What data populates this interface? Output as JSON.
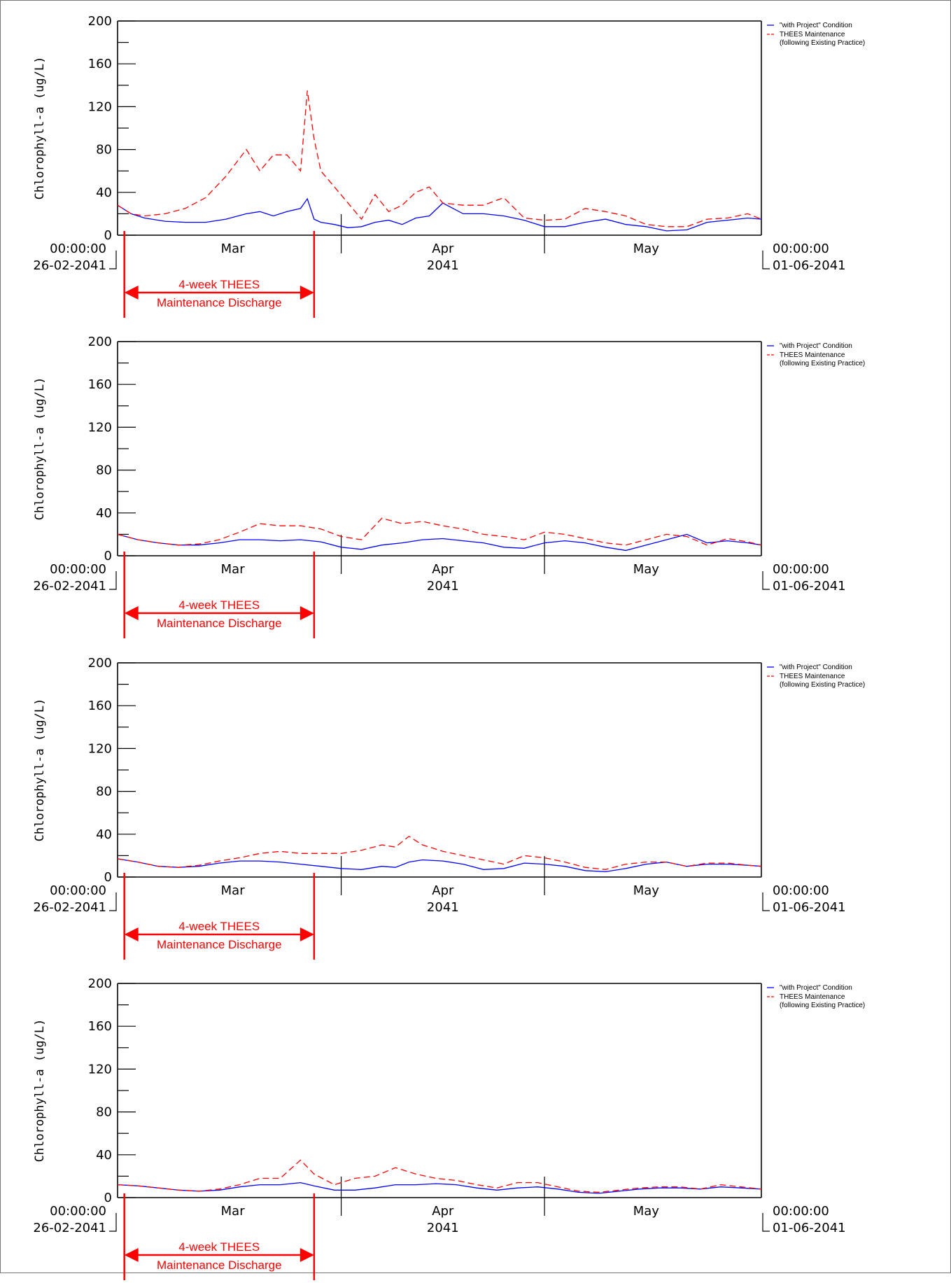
{
  "colors": {
    "with_project": "#0000ff",
    "thees": "#ff0000",
    "axis": "#000000",
    "annotation": "#ff0000"
  },
  "axis_text": {
    "start_time": "00:00:00",
    "start_date": "26-02-2041",
    "end_time": "00:00:00",
    "end_date": "01-06-2041",
    "year": "2041"
  },
  "annotation": {
    "line1": "4-week THEES",
    "line2": "Maintenance Discharge",
    "start": "2041-02-27",
    "end": "2041-03-27"
  },
  "chart_data": [
    {
      "type": "line",
      "ylabel": "Chlorophyll-a (ug/L)",
      "ylim": [
        0,
        200
      ],
      "yticks": [
        0,
        40,
        80,
        120,
        160,
        200
      ],
      "xlim": [
        "2041-02-26",
        "2041-06-01"
      ],
      "xtick_labels": [
        {
          "date": "2041-03-15",
          "label": "Mar"
        },
        {
          "date": "2041-04-15",
          "label": "Apr"
        },
        {
          "date": "2041-05-15",
          "label": "May"
        }
      ],
      "month_boundaries": [
        "2041-03-31",
        "2041-04-30"
      ],
      "legend_position": "top-right",
      "x": [
        "2041-02-26",
        "2041-02-28",
        "2041-03-02",
        "2041-03-05",
        "2041-03-08",
        "2041-03-11",
        "2041-03-14",
        "2041-03-17",
        "2041-03-19",
        "2041-03-21",
        "2041-03-23",
        "2041-03-25",
        "2041-03-26",
        "2041-03-27",
        "2041-03-28",
        "2041-03-30",
        "2041-04-01",
        "2041-04-03",
        "2041-04-05",
        "2041-04-07",
        "2041-04-09",
        "2041-04-11",
        "2041-04-13",
        "2041-04-15",
        "2041-04-18",
        "2041-04-21",
        "2041-04-24",
        "2041-04-27",
        "2041-04-30",
        "2041-05-03",
        "2041-05-06",
        "2041-05-09",
        "2041-05-12",
        "2041-05-15",
        "2041-05-18",
        "2041-05-21",
        "2041-05-24",
        "2041-05-27",
        "2041-05-30",
        "2041-06-01"
      ],
      "series": [
        {
          "name": "\"with Project\" Condition",
          "style": "solid",
          "values": [
            28,
            20,
            16,
            13,
            12,
            12,
            15,
            20,
            22,
            18,
            22,
            25,
            34,
            15,
            12,
            10,
            7,
            8,
            12,
            14,
            10,
            16,
            18,
            30,
            20,
            20,
            18,
            14,
            8,
            8,
            12,
            15,
            10,
            8,
            4,
            5,
            12,
            14,
            16,
            15
          ]
        },
        {
          "name": "THEES Maintenance\n(following Existing Practice)",
          "style": "dashed",
          "values": [
            28,
            20,
            18,
            20,
            25,
            35,
            55,
            80,
            60,
            75,
            75,
            60,
            135,
            90,
            60,
            45,
            30,
            15,
            38,
            22,
            28,
            40,
            45,
            30,
            28,
            28,
            35,
            16,
            14,
            15,
            25,
            22,
            18,
            10,
            8,
            8,
            15,
            16,
            20,
            15
          ]
        }
      ]
    },
    {
      "type": "line",
      "ylabel": "Chlorophyll-a (ug/L)",
      "ylim": [
        0,
        200
      ],
      "yticks": [
        0,
        40,
        80,
        120,
        160,
        200
      ],
      "xlim": [
        "2041-02-26",
        "2041-06-01"
      ],
      "xtick_labels": [
        {
          "date": "2041-03-15",
          "label": "Mar"
        },
        {
          "date": "2041-04-15",
          "label": "Apr"
        },
        {
          "date": "2041-05-15",
          "label": "May"
        }
      ],
      "month_boundaries": [
        "2041-03-31",
        "2041-04-30"
      ],
      "legend_position": "top-right",
      "x": [
        "2041-02-26",
        "2041-03-01",
        "2041-03-04",
        "2041-03-07",
        "2041-03-10",
        "2041-03-13",
        "2041-03-16",
        "2041-03-19",
        "2041-03-22",
        "2041-03-25",
        "2041-03-28",
        "2041-03-31",
        "2041-04-03",
        "2041-04-06",
        "2041-04-09",
        "2041-04-12",
        "2041-04-15",
        "2041-04-18",
        "2041-04-21",
        "2041-04-24",
        "2041-04-27",
        "2041-04-30",
        "2041-05-03",
        "2041-05-06",
        "2041-05-09",
        "2041-05-12",
        "2041-05-15",
        "2041-05-18",
        "2041-05-21",
        "2041-05-24",
        "2041-05-27",
        "2041-05-30",
        "2041-06-01"
      ],
      "series": [
        {
          "name": "\"with Project\" Condition",
          "style": "solid",
          "values": [
            20,
            15,
            12,
            10,
            10,
            12,
            15,
            15,
            14,
            15,
            13,
            8,
            6,
            10,
            12,
            15,
            16,
            14,
            12,
            8,
            7,
            12,
            14,
            12,
            8,
            5,
            10,
            15,
            20,
            12,
            14,
            12,
            10
          ]
        },
        {
          "name": "THEES Maintenance\n(following Existing Practice)",
          "style": "dashed",
          "values": [
            20,
            15,
            12,
            10,
            11,
            15,
            22,
            30,
            28,
            28,
            25,
            18,
            15,
            35,
            30,
            32,
            28,
            25,
            20,
            18,
            15,
            22,
            20,
            16,
            12,
            10,
            15,
            20,
            18,
            10,
            16,
            13,
            10
          ]
        }
      ]
    },
    {
      "type": "line",
      "ylabel": "Chlorophyll-a (ug/L)",
      "ylim": [
        0,
        200
      ],
      "yticks": [
        0,
        40,
        80,
        120,
        160,
        200
      ],
      "xlim": [
        "2041-02-26",
        "2041-06-01"
      ],
      "xtick_labels": [
        {
          "date": "2041-03-15",
          "label": "Mar"
        },
        {
          "date": "2041-04-15",
          "label": "Apr"
        },
        {
          "date": "2041-05-15",
          "label": "May"
        }
      ],
      "month_boundaries": [
        "2041-03-31",
        "2041-04-30"
      ],
      "legend_position": "top-right",
      "x": [
        "2041-02-26",
        "2041-03-01",
        "2041-03-04",
        "2041-03-07",
        "2041-03-10",
        "2041-03-13",
        "2041-03-16",
        "2041-03-19",
        "2041-03-22",
        "2041-03-25",
        "2041-03-28",
        "2041-03-31",
        "2041-04-03",
        "2041-04-06",
        "2041-04-08",
        "2041-04-10",
        "2041-04-12",
        "2041-04-15",
        "2041-04-18",
        "2041-04-21",
        "2041-04-24",
        "2041-04-27",
        "2041-04-30",
        "2041-05-03",
        "2041-05-06",
        "2041-05-09",
        "2041-05-12",
        "2041-05-15",
        "2041-05-18",
        "2041-05-21",
        "2041-05-24",
        "2041-05-27",
        "2041-05-30",
        "2041-06-01"
      ],
      "series": [
        {
          "name": "\"with Project\" Condition",
          "style": "solid",
          "values": [
            17,
            14,
            10,
            9,
            10,
            13,
            15,
            15,
            14,
            12,
            10,
            8,
            7,
            10,
            9,
            14,
            16,
            15,
            12,
            7,
            8,
            13,
            12,
            10,
            6,
            5,
            8,
            12,
            14,
            10,
            12,
            12,
            11,
            10
          ]
        },
        {
          "name": "THEES Maintenance\n(following Existing Practice)",
          "style": "dashed",
          "values": [
            17,
            14,
            10,
            9,
            11,
            15,
            18,
            22,
            24,
            22,
            22,
            22,
            25,
            30,
            28,
            38,
            30,
            24,
            20,
            16,
            12,
            20,
            18,
            14,
            9,
            7,
            12,
            14,
            14,
            10,
            13,
            13,
            11,
            10
          ]
        }
      ]
    },
    {
      "type": "line",
      "ylabel": "Chlorophyll-a (ug/L)",
      "ylim": [
        0,
        200
      ],
      "yticks": [
        0,
        40,
        80,
        120,
        160,
        200
      ],
      "xlim": [
        "2041-02-26",
        "2041-06-01"
      ],
      "xtick_labels": [
        {
          "date": "2041-03-15",
          "label": "Mar"
        },
        {
          "date": "2041-04-15",
          "label": "Apr"
        },
        {
          "date": "2041-05-15",
          "label": "May"
        }
      ],
      "month_boundaries": [
        "2041-03-31",
        "2041-04-30"
      ],
      "legend_position": "top-right",
      "x": [
        "2041-02-26",
        "2041-03-01",
        "2041-03-04",
        "2041-03-07",
        "2041-03-10",
        "2041-03-13",
        "2041-03-16",
        "2041-03-19",
        "2041-03-22",
        "2041-03-25",
        "2041-03-27",
        "2041-03-30",
        "2041-04-02",
        "2041-04-05",
        "2041-04-08",
        "2041-04-11",
        "2041-04-14",
        "2041-04-17",
        "2041-04-20",
        "2041-04-23",
        "2041-04-26",
        "2041-04-29",
        "2041-05-02",
        "2041-05-05",
        "2041-05-08",
        "2041-05-11",
        "2041-05-14",
        "2041-05-17",
        "2041-05-20",
        "2041-05-23",
        "2041-05-26",
        "2041-05-29",
        "2041-06-01"
      ],
      "series": [
        {
          "name": "\"with Project\" Condition",
          "style": "solid",
          "values": [
            12,
            11,
            9,
            7,
            6,
            7,
            10,
            12,
            12,
            14,
            11,
            7,
            7,
            9,
            12,
            12,
            13,
            12,
            9,
            7,
            9,
            10,
            8,
            5,
            4,
            6,
            8,
            9,
            9,
            8,
            10,
            9,
            8
          ]
        },
        {
          "name": "THEES Maintenance\n(following Existing Practice)",
          "style": "dashed",
          "values": [
            12,
            11,
            9,
            7,
            6,
            8,
            12,
            18,
            18,
            35,
            22,
            12,
            18,
            20,
            28,
            22,
            18,
            16,
            12,
            9,
            14,
            14,
            10,
            6,
            5,
            7,
            9,
            10,
            10,
            8,
            12,
            10,
            8
          ]
        }
      ]
    }
  ]
}
